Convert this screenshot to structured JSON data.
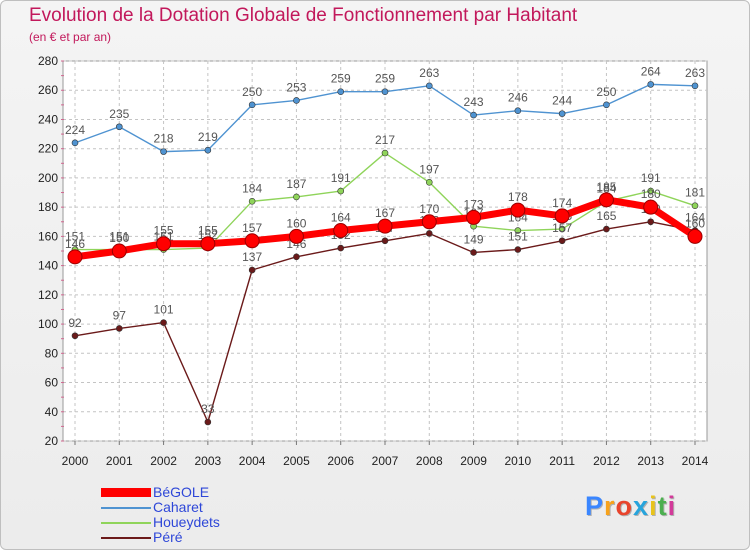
{
  "title": "Evolution de la Dotation Globale de Fonctionnement par Habitant",
  "subtitle": "(en € et par an)",
  "brand": "Proxiti",
  "chart_data": {
    "type": "line",
    "title": "Evolution de la Dotation Globale de Fonctionnement par Habitant",
    "ylabel": "(en € et par an)",
    "xlabel": "",
    "ylim": [
      20,
      280
    ],
    "yticks": [
      "20",
      "40",
      "60",
      "80",
      "100",
      "120",
      "140",
      "160",
      "180",
      "200",
      "220",
      "240",
      "260",
      "280"
    ],
    "categories": [
      "2000",
      "2001",
      "2002",
      "2003",
      "2004",
      "2005",
      "2006",
      "2007",
      "2008",
      "2009",
      "2010",
      "2011",
      "2012",
      "2013",
      "2014"
    ],
    "grid": true,
    "legend_position": "bottom-left",
    "series": [
      {
        "name": "Caharet",
        "color": "#4f93d1",
        "values": [
          224,
          235,
          218,
          219,
          250,
          253,
          259,
          259,
          263,
          243,
          246,
          244,
          250,
          264,
          263
        ]
      },
      {
        "name": "Houeydets",
        "color": "#8fd45a",
        "values": [
          151,
          151,
          151,
          152,
          184,
          187,
          191,
          217,
          197,
          167,
          164,
          165,
          184,
          191,
          181
        ]
      },
      {
        "name": "Péré",
        "color": "#6b1a1a",
        "values": [
          92,
          97,
          101,
          33,
          137,
          146,
          152,
          157,
          162,
          149,
          151,
          157,
          165,
          170,
          164
        ]
      },
      {
        "name": "BéGOLE",
        "color": "#ff0000",
        "values": [
          146,
          150,
          155,
          155,
          157,
          160,
          164,
          167,
          170,
          173,
          178,
          174,
          185,
          180,
          160
        ]
      }
    ]
  },
  "legend": [
    {
      "name": "BéGOLE",
      "color": "#ff0000"
    },
    {
      "name": "Caharet",
      "color": "#4f93d1"
    },
    {
      "name": "Houeydets",
      "color": "#8fd45a"
    },
    {
      "name": "Péré",
      "color": "#6b1a1a"
    }
  ]
}
